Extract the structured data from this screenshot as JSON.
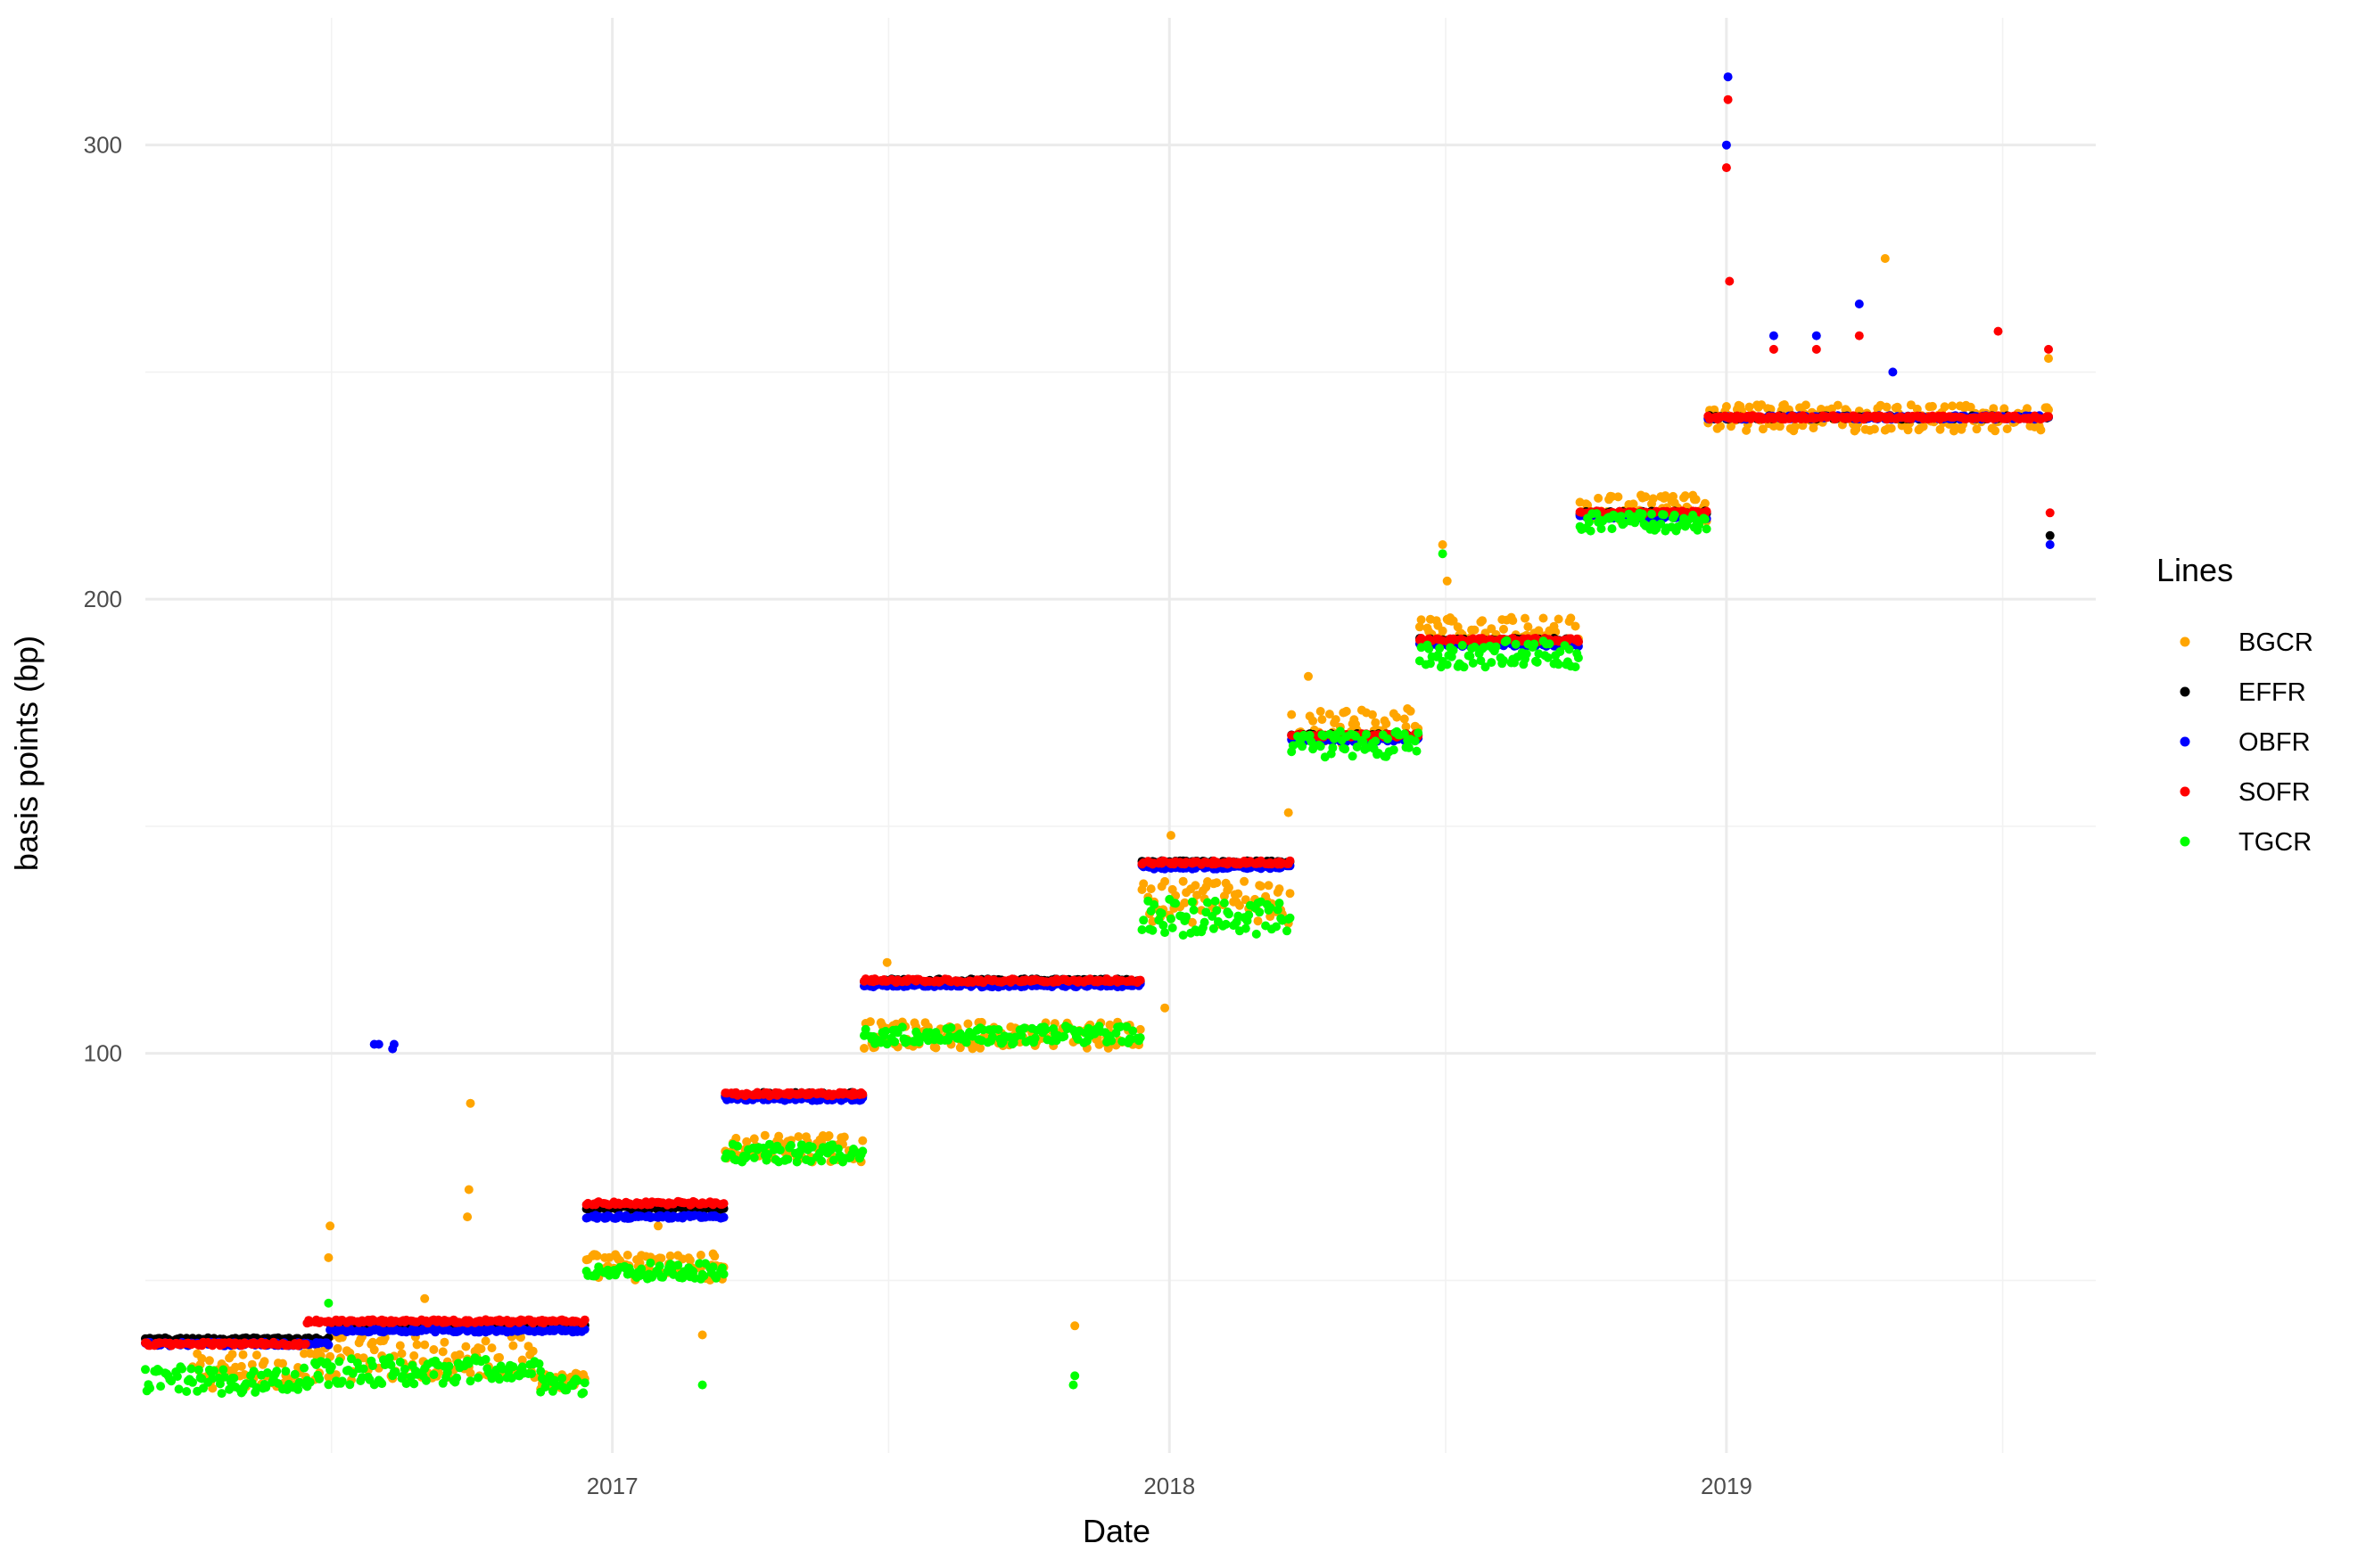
{
  "chart_data": {
    "type": "scatter",
    "xlabel": "Date",
    "ylabel": "basis points (bp)",
    "legend_title": "Lines",
    "legend_position": "right",
    "grid": true,
    "xlim": [
      "2016-03-01",
      "2019-08-31"
    ],
    "ylim": [
      12,
      328
    ],
    "x_ticks": [
      {
        "date": "2017-01-01",
        "label": "2017"
      },
      {
        "date": "2018-01-01",
        "label": "2018"
      },
      {
        "date": "2019-01-01",
        "label": "2019"
      }
    ],
    "x_minor_ticks": [
      "2016-07-01",
      "2017-07-01",
      "2018-07-01",
      "2019-07-01"
    ],
    "y_ticks": [
      100,
      200,
      300
    ],
    "y_minor_ticks": [
      50,
      150,
      250
    ],
    "series": [
      {
        "name": "BGCR",
        "color": "#FFA500",
        "step_segments": [
          {
            "start": "2016-04-01",
            "end": "2016-06-15",
            "value": 30,
            "spread": 4
          },
          {
            "start": "2016-06-15",
            "end": "2016-11-15",
            "value": 33,
            "spread": 5
          },
          {
            "start": "2016-11-15",
            "end": "2016-12-14",
            "value": 28,
            "spread": 2
          },
          {
            "start": "2016-12-15",
            "end": "2017-03-15",
            "value": 53,
            "spread": 3
          },
          {
            "start": "2017-03-16",
            "end": "2017-06-14",
            "value": 79,
            "spread": 3
          },
          {
            "start": "2017-06-15",
            "end": "2017-12-13",
            "value": 104,
            "spread": 3
          },
          {
            "start": "2017-12-14",
            "end": "2018-03-21",
            "value": 133,
            "spread": 5
          },
          {
            "start": "2018-03-22",
            "end": "2018-06-13",
            "value": 172,
            "spread": 4
          },
          {
            "start": "2018-06-14",
            "end": "2018-09-26",
            "value": 193,
            "spread": 3
          },
          {
            "start": "2018-09-27",
            "end": "2018-12-19",
            "value": 220,
            "spread": 3
          },
          {
            "start": "2018-12-20",
            "end": "2019-07-31",
            "value": 240,
            "spread": 3
          }
        ],
        "points": [
          {
            "date": "2016-06-30",
            "value": 62
          },
          {
            "date": "2016-06-29",
            "value": 55
          },
          {
            "date": "2016-09-30",
            "value": 89
          },
          {
            "date": "2016-09-29",
            "value": 70
          },
          {
            "date": "2016-09-28",
            "value": 64
          },
          {
            "date": "2016-08-31",
            "value": 46
          },
          {
            "date": "2017-01-31",
            "value": 62
          },
          {
            "date": "2017-03-01",
            "value": 38
          },
          {
            "date": "2017-06-30",
            "value": 120
          },
          {
            "date": "2017-10-31",
            "value": 40
          },
          {
            "date": "2017-12-29",
            "value": 110
          },
          {
            "date": "2018-01-02",
            "value": 148
          },
          {
            "date": "2018-03-20",
            "value": 153
          },
          {
            "date": "2018-04-02",
            "value": 183
          },
          {
            "date": "2018-06-29",
            "value": 212
          },
          {
            "date": "2018-07-02",
            "value": 204
          },
          {
            "date": "2019-04-15",
            "value": 275
          },
          {
            "date": "2019-07-31",
            "value": 253
          }
        ]
      },
      {
        "name": "EFFR",
        "color": "#000000",
        "step_segments": [
          {
            "start": "2016-03-01",
            "end": "2016-06-29",
            "value": 37
          },
          {
            "start": "2016-06-30",
            "end": "2016-12-14",
            "value": 40
          },
          {
            "start": "2016-12-15",
            "end": "2017-03-15",
            "value": 66
          },
          {
            "start": "2017-03-16",
            "end": "2017-06-14",
            "value": 91
          },
          {
            "start": "2017-06-15",
            "end": "2017-12-13",
            "value": 116
          },
          {
            "start": "2017-12-14",
            "end": "2018-03-21",
            "value": 142
          },
          {
            "start": "2018-03-22",
            "end": "2018-06-13",
            "value": 170
          },
          {
            "start": "2018-06-14",
            "end": "2018-09-26",
            "value": 191
          },
          {
            "start": "2018-09-27",
            "end": "2018-12-19",
            "value": 219
          },
          {
            "start": "2018-12-20",
            "end": "2019-07-31",
            "value": 240
          }
        ],
        "points": [
          {
            "date": "2019-08-01",
            "value": 214
          }
        ]
      },
      {
        "name": "OBFR",
        "color": "#0000FF",
        "step_segments": [
          {
            "start": "2016-03-01",
            "end": "2016-06-29",
            "value": 36
          },
          {
            "start": "2016-06-30",
            "end": "2016-12-14",
            "value": 39
          },
          {
            "start": "2016-12-15",
            "end": "2017-03-15",
            "value": 64
          },
          {
            "start": "2017-03-16",
            "end": "2017-06-14",
            "value": 90
          },
          {
            "start": "2017-06-15",
            "end": "2017-12-13",
            "value": 115
          },
          {
            "start": "2017-12-14",
            "end": "2018-03-21",
            "value": 141
          },
          {
            "start": "2018-03-22",
            "end": "2018-06-13",
            "value": 169
          },
          {
            "start": "2018-06-14",
            "end": "2018-09-26",
            "value": 190
          },
          {
            "start": "2018-09-27",
            "end": "2018-12-19",
            "value": 218
          },
          {
            "start": "2018-12-20",
            "end": "2019-07-31",
            "value": 240
          }
        ],
        "points": [
          {
            "date": "2016-07-29",
            "value": 102
          },
          {
            "date": "2016-08-01",
            "value": 102
          },
          {
            "date": "2016-08-10",
            "value": 101
          },
          {
            "date": "2016-08-11",
            "value": 102
          },
          {
            "date": "2019-01-02",
            "value": 315
          },
          {
            "date": "2019-01-01",
            "value": 300
          },
          {
            "date": "2019-02-01",
            "value": 258
          },
          {
            "date": "2019-03-01",
            "value": 258
          },
          {
            "date": "2019-03-29",
            "value": 265
          },
          {
            "date": "2019-04-20",
            "value": 250
          },
          {
            "date": "2019-08-01",
            "value": 212
          }
        ]
      },
      {
        "name": "SOFR",
        "color": "#FF0000",
        "step_segments": [
          {
            "start": "2016-03-01",
            "end": "2016-06-14",
            "value": 36
          },
          {
            "start": "2016-06-15",
            "end": "2016-12-14",
            "value": 41
          },
          {
            "start": "2016-12-15",
            "end": "2017-03-15",
            "value": 67
          },
          {
            "start": "2017-03-16",
            "end": "2017-06-14",
            "value": 91
          },
          {
            "start": "2017-06-15",
            "end": "2017-12-13",
            "value": 116
          },
          {
            "start": "2017-12-14",
            "end": "2018-03-21",
            "value": 142
          },
          {
            "start": "2018-03-22",
            "end": "2018-06-13",
            "value": 170
          },
          {
            "start": "2018-06-14",
            "end": "2018-09-26",
            "value": 191
          },
          {
            "start": "2018-09-27",
            "end": "2018-12-19",
            "value": 219
          },
          {
            "start": "2018-12-20",
            "end": "2019-07-31",
            "value": 240
          }
        ],
        "points": [
          {
            "date": "2019-01-02",
            "value": 310
          },
          {
            "date": "2019-01-01",
            "value": 295
          },
          {
            "date": "2019-01-03",
            "value": 270
          },
          {
            "date": "2019-02-01",
            "value": 255
          },
          {
            "date": "2019-03-01",
            "value": 255
          },
          {
            "date": "2019-03-29",
            "value": 258
          },
          {
            "date": "2019-06-28",
            "value": 259
          },
          {
            "date": "2019-07-31",
            "value": 255
          },
          {
            "date": "2019-08-01",
            "value": 219
          }
        ]
      },
      {
        "name": "TGCR",
        "color": "#00FF00",
        "step_segments": [
          {
            "start": "2016-03-01",
            "end": "2016-06-15",
            "value": 28,
            "spread": 3
          },
          {
            "start": "2016-06-15",
            "end": "2016-11-15",
            "value": 30,
            "spread": 3
          },
          {
            "start": "2016-11-15",
            "end": "2016-12-14",
            "value": 27,
            "spread": 2
          },
          {
            "start": "2016-12-15",
            "end": "2017-03-15",
            "value": 52,
            "spread": 2
          },
          {
            "start": "2017-03-16",
            "end": "2017-06-14",
            "value": 78,
            "spread": 2
          },
          {
            "start": "2017-06-15",
            "end": "2017-12-13",
            "value": 104,
            "spread": 2
          },
          {
            "start": "2017-12-14",
            "end": "2018-03-21",
            "value": 130,
            "spread": 4
          },
          {
            "start": "2018-03-22",
            "end": "2018-06-13",
            "value": 168,
            "spread": 3
          },
          {
            "start": "2018-06-14",
            "end": "2018-09-26",
            "value": 188,
            "spread": 3
          },
          {
            "start": "2018-09-27",
            "end": "2018-12-19",
            "value": 217,
            "spread": 2
          }
        ],
        "points": [
          {
            "date": "2016-06-29",
            "value": 45
          },
          {
            "date": "2017-03-01",
            "value": 27
          },
          {
            "date": "2017-10-31",
            "value": 29
          },
          {
            "date": "2017-10-30",
            "value": 27
          },
          {
            "date": "2018-06-29",
            "value": 210
          }
        ]
      }
    ]
  }
}
